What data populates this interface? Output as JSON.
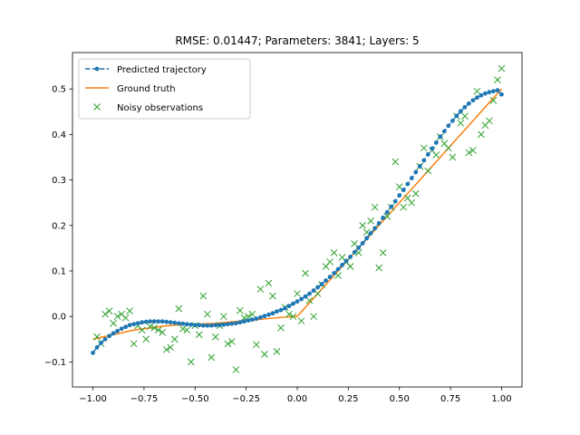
{
  "chart_data": {
    "type": "line",
    "title": "RMSE: 0.01447; Parameters: 3841; Layers: 5",
    "xlabel": "",
    "ylabel": "",
    "xlim": [
      -1.1,
      1.1
    ],
    "ylim": [
      -0.155,
      0.58
    ],
    "xticks": [
      "−1.00",
      "−0.75",
      "−0.50",
      "−0.25",
      "0.00",
      "0.25",
      "0.50",
      "0.75",
      "1.00"
    ],
    "xtick_values": [
      -1.0,
      -0.75,
      -0.5,
      -0.25,
      0.0,
      0.25,
      0.5,
      0.75,
      1.0
    ],
    "yticks": [
      "−0.1",
      "0.0",
      "0.1",
      "0.2",
      "0.3",
      "0.4",
      "0.5"
    ],
    "ytick_values": [
      -0.1,
      0.0,
      0.1,
      0.2,
      0.3,
      0.4,
      0.5
    ],
    "grid": false,
    "legend_position": "upper-left",
    "series": [
      {
        "name": "Predicted trajectory",
        "style": "dashed-dot-markers",
        "color": "#1f77b4",
        "x": [
          -1.0,
          -0.98,
          -0.96,
          -0.94,
          -0.92,
          -0.9,
          -0.88,
          -0.86,
          -0.84,
          -0.82,
          -0.8,
          -0.78,
          -0.76,
          -0.74,
          -0.72,
          -0.7,
          -0.68,
          -0.66,
          -0.64,
          -0.62,
          -0.6,
          -0.58,
          -0.56,
          -0.54,
          -0.52,
          -0.5,
          -0.48,
          -0.46,
          -0.44,
          -0.42,
          -0.4,
          -0.38,
          -0.36,
          -0.34,
          -0.32,
          -0.3,
          -0.28,
          -0.26,
          -0.24,
          -0.22,
          -0.2,
          -0.18,
          -0.16,
          -0.14,
          -0.12,
          -0.1,
          -0.08,
          -0.06,
          -0.04,
          -0.02,
          0.0,
          0.02,
          0.04,
          0.06,
          0.08,
          0.1,
          0.12,
          0.14,
          0.16,
          0.18,
          0.2,
          0.22,
          0.24,
          0.26,
          0.28,
          0.3,
          0.32,
          0.34,
          0.36,
          0.38,
          0.4,
          0.42,
          0.44,
          0.46,
          0.48,
          0.5,
          0.52,
          0.54,
          0.56,
          0.58,
          0.6,
          0.62,
          0.64,
          0.66,
          0.68,
          0.7,
          0.72,
          0.74,
          0.76,
          0.78,
          0.8,
          0.82,
          0.84,
          0.86,
          0.88,
          0.9,
          0.92,
          0.94,
          0.96,
          0.98,
          1.0
        ],
        "y": [
          -0.08,
          -0.068,
          -0.058,
          -0.05,
          -0.043,
          -0.037,
          -0.032,
          -0.027,
          -0.023,
          -0.019,
          -0.017,
          -0.015,
          -0.013,
          -0.012,
          -0.011,
          -0.011,
          -0.011,
          -0.011,
          -0.012,
          -0.013,
          -0.014,
          -0.015,
          -0.016,
          -0.017,
          -0.018,
          -0.019,
          -0.019,
          -0.02,
          -0.02,
          -0.02,
          -0.019,
          -0.019,
          -0.018,
          -0.017,
          -0.016,
          -0.015,
          -0.013,
          -0.011,
          -0.009,
          -0.007,
          -0.005,
          -0.002,
          0.001,
          0.004,
          0.007,
          0.011,
          0.014,
          0.018,
          0.023,
          0.028,
          0.033,
          0.038,
          0.044,
          0.05,
          0.057,
          0.064,
          0.071,
          0.079,
          0.087,
          0.095,
          0.104,
          0.113,
          0.122,
          0.131,
          0.141,
          0.151,
          0.161,
          0.172,
          0.183,
          0.194,
          0.205,
          0.217,
          0.229,
          0.241,
          0.253,
          0.266,
          0.278,
          0.291,
          0.304,
          0.317,
          0.33,
          0.343,
          0.356,
          0.369,
          0.382,
          0.395,
          0.407,
          0.419,
          0.43,
          0.441,
          0.451,
          0.46,
          0.468,
          0.475,
          0.481,
          0.486,
          0.49,
          0.493,
          0.495,
          0.497,
          0.488
        ]
      },
      {
        "name": "Ground truth",
        "style": "solid",
        "color": "#ff7f0e",
        "x": [
          -1.0,
          -0.95,
          -0.9,
          -0.85,
          -0.8,
          -0.75,
          -0.7,
          -0.65,
          -0.6,
          -0.55,
          -0.5,
          -0.45,
          -0.4,
          -0.35,
          -0.3,
          -0.25,
          -0.2,
          -0.15,
          -0.1,
          -0.05,
          0.0,
          0.05,
          0.1,
          0.15,
          0.2,
          0.25,
          0.3,
          0.35,
          0.4,
          0.45,
          0.5,
          0.55,
          0.6,
          0.65,
          0.7,
          0.75,
          0.8,
          0.85,
          0.9,
          0.95,
          1.0
        ],
        "y": [
          -0.05,
          -0.045,
          -0.04,
          -0.035,
          -0.03,
          -0.027,
          -0.024,
          -0.021,
          -0.019,
          -0.018,
          -0.017,
          -0.016,
          -0.015,
          -0.013,
          -0.011,
          -0.009,
          -0.007,
          -0.005,
          -0.003,
          -0.001,
          0.0,
          0.025,
          0.05,
          0.075,
          0.1,
          0.125,
          0.15,
          0.175,
          0.2,
          0.225,
          0.25,
          0.275,
          0.3,
          0.325,
          0.35,
          0.375,
          0.4,
          0.425,
          0.45,
          0.475,
          0.5
        ]
      },
      {
        "name": "Noisy observations",
        "style": "x-markers",
        "color": "#2ca02c",
        "x": [
          -0.98,
          -0.96,
          -0.94,
          -0.92,
          -0.9,
          -0.88,
          -0.86,
          -0.84,
          -0.82,
          -0.8,
          -0.78,
          -0.76,
          -0.74,
          -0.72,
          -0.7,
          -0.68,
          -0.66,
          -0.64,
          -0.62,
          -0.6,
          -0.58,
          -0.56,
          -0.54,
          -0.52,
          -0.5,
          -0.48,
          -0.46,
          -0.44,
          -0.42,
          -0.4,
          -0.38,
          -0.36,
          -0.34,
          -0.32,
          -0.3,
          -0.28,
          -0.26,
          -0.24,
          -0.22,
          -0.2,
          -0.18,
          -0.16,
          -0.14,
          -0.12,
          -0.1,
          -0.08,
          -0.06,
          -0.04,
          -0.02,
          0.0,
          0.02,
          0.04,
          0.06,
          0.08,
          0.1,
          0.12,
          0.14,
          0.16,
          0.18,
          0.2,
          0.22,
          0.24,
          0.26,
          0.28,
          0.3,
          0.32,
          0.34,
          0.36,
          0.38,
          0.4,
          0.42,
          0.44,
          0.46,
          0.48,
          0.5,
          0.52,
          0.54,
          0.56,
          0.58,
          0.6,
          0.62,
          0.64,
          0.66,
          0.68,
          0.7,
          0.72,
          0.74,
          0.76,
          0.78,
          0.8,
          0.82,
          0.84,
          0.86,
          0.88,
          0.9,
          0.92,
          0.94,
          0.96,
          0.98,
          1.0
        ],
        "y": [
          -0.045,
          -0.06,
          0.005,
          0.012,
          -0.015,
          0.0,
          0.005,
          -0.003,
          0.012,
          -0.06,
          -0.02,
          -0.03,
          -0.05,
          -0.022,
          -0.025,
          -0.03,
          -0.035,
          -0.073,
          -0.068,
          -0.05,
          0.017,
          -0.027,
          -0.03,
          -0.1,
          -0.02,
          -0.04,
          0.045,
          0.005,
          -0.09,
          -0.045,
          -0.02,
          0.0,
          -0.06,
          -0.055,
          -0.117,
          0.013,
          -0.003,
          0.0,
          0.005,
          -0.062,
          0.06,
          -0.083,
          0.073,
          0.045,
          -0.077,
          -0.025,
          0.02,
          0.005,
          0.0,
          0.05,
          -0.01,
          0.095,
          0.035,
          0.0,
          0.05,
          0.07,
          0.11,
          0.12,
          0.14,
          0.09,
          0.13,
          0.12,
          0.11,
          0.16,
          0.14,
          0.2,
          0.185,
          0.21,
          0.24,
          0.107,
          0.14,
          0.22,
          0.24,
          0.34,
          0.285,
          0.24,
          0.26,
          0.25,
          0.27,
          0.33,
          0.37,
          0.32,
          0.365,
          0.355,
          0.395,
          0.38,
          0.37,
          0.35,
          0.44,
          0.425,
          0.44,
          0.36,
          0.365,
          0.495,
          0.4,
          0.42,
          0.43,
          0.475,
          0.52,
          0.545
        ]
      }
    ]
  }
}
